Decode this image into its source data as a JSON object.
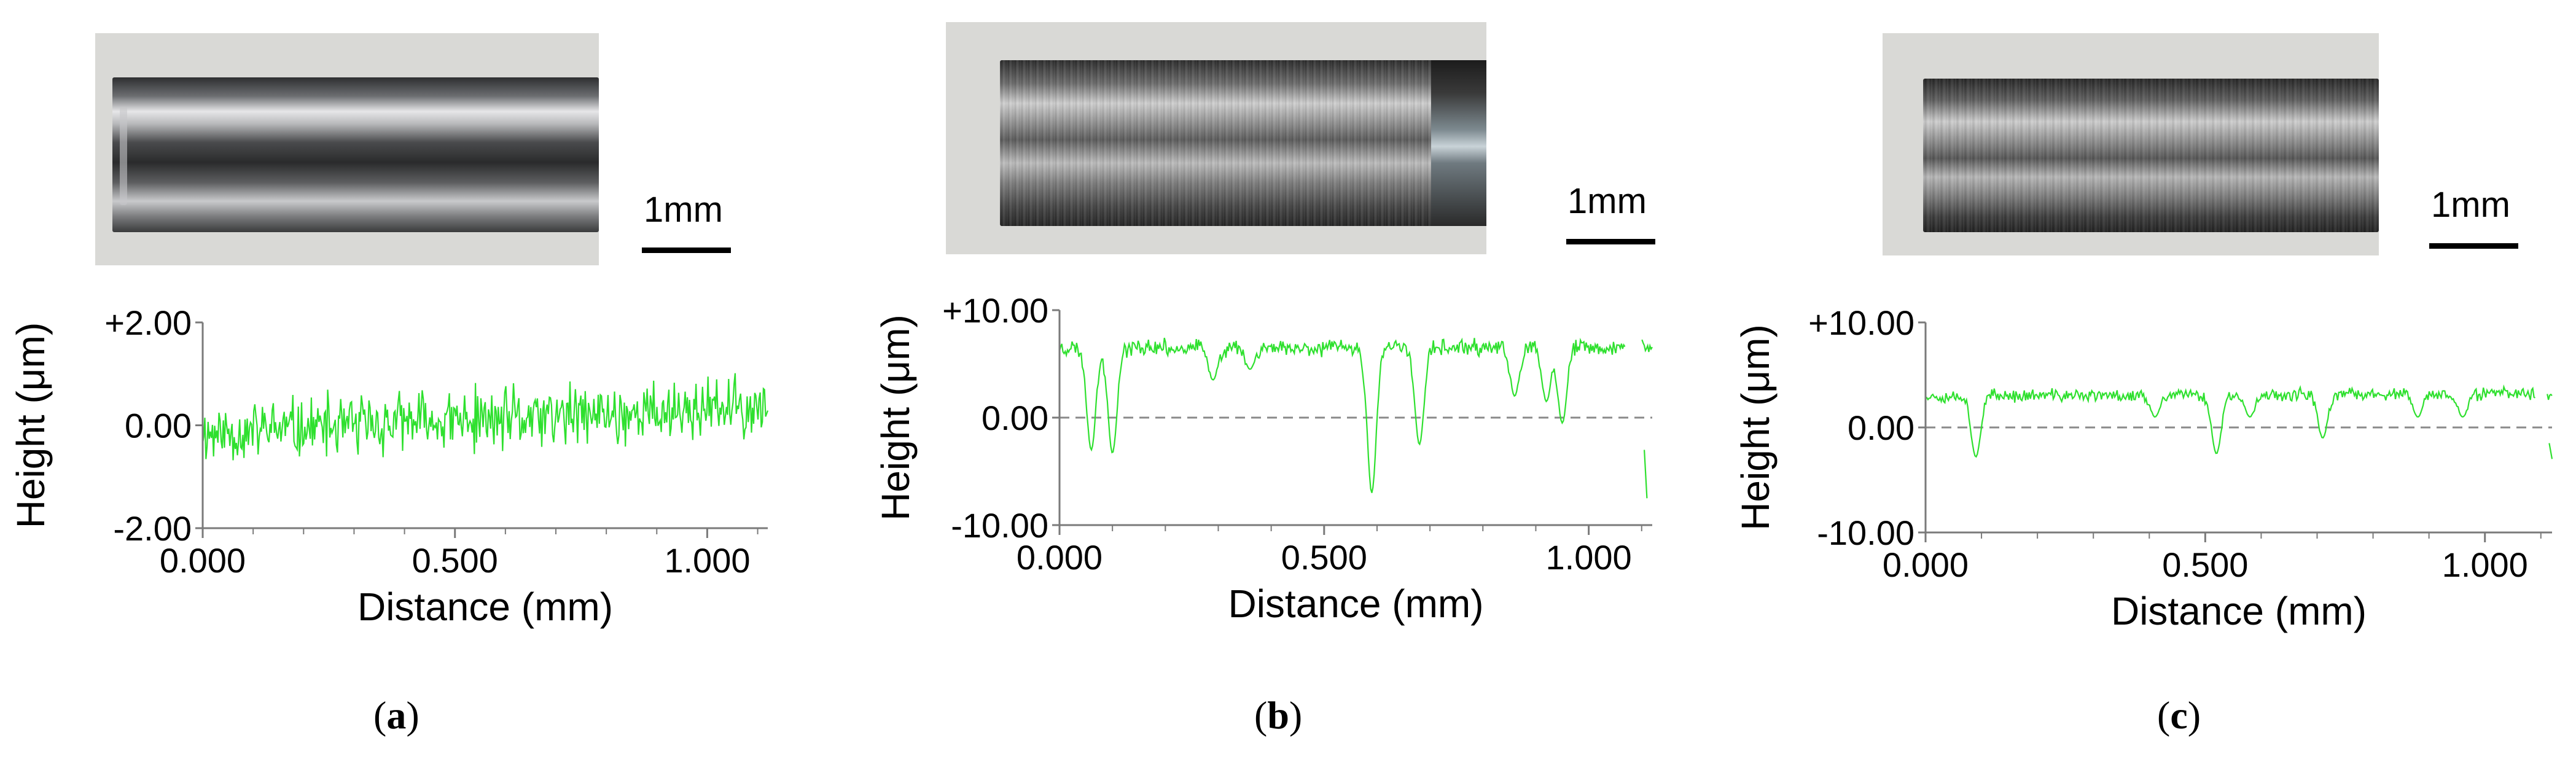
{
  "panels": [
    {
      "caption_open": "(",
      "caption_letter": "a",
      "caption_close": ")",
      "scale_label": "1mm",
      "photo": {
        "surface": "smooth-polished",
        "rod_color": "#5b5d60",
        "highlight_color": "#e8e8ea"
      },
      "chart_data": {
        "type": "line",
        "series_color": "#2ee02e",
        "xlabel": "Distance (mm)",
        "ylabel": "Height (μm)",
        "xlim": [
          0,
          1.12
        ],
        "ylim": [
          -2.0,
          2.0
        ],
        "xticks": [
          0.0,
          0.5,
          1.0
        ],
        "xtick_labels": [
          "0.000",
          "0.500",
          "1.000"
        ],
        "yticks": [
          2.0,
          0.0,
          -2.0
        ],
        "ytick_labels": [
          "+2.00",
          "0.00",
          "-2.00"
        ],
        "zero_line": false,
        "profile": {
          "baseline_start": -0.15,
          "baseline_end": 0.35,
          "noise": 0.55,
          "dips": [],
          "gaps": [],
          "seed": 11
        }
      }
    },
    {
      "caption_open": "(",
      "caption_letter": "b",
      "caption_close": ")",
      "scale_label": "1mm",
      "photo": {
        "surface": "worn",
        "rod_color": "#3c3c3c",
        "highlight_color": "#d0d0d0"
      },
      "chart_data": {
        "type": "line",
        "series_color": "#2ee02e",
        "xlabel": "Distance (mm)",
        "ylabel": "Height (μm)",
        "xlim": [
          0,
          1.12
        ],
        "ylim": [
          -10.0,
          10.0
        ],
        "xticks": [
          0.0,
          0.5,
          1.0
        ],
        "xtick_labels": [
          "0.000",
          "0.500",
          "1.000"
        ],
        "yticks": [
          10.0,
          0.0,
          -10.0
        ],
        "ytick_labels": [
          "+10.00",
          "0.00",
          "-10.00"
        ],
        "zero_line": true,
        "profile": {
          "baseline_start": 6.5,
          "baseline_end": 6.5,
          "noise": 0.7,
          "dips": [
            [
              0.06,
              -3.0
            ],
            [
              0.1,
              -3.3
            ],
            [
              0.29,
              3.5
            ],
            [
              0.36,
              4.5
            ],
            [
              0.59,
              -7.0
            ],
            [
              0.68,
              -2.5
            ],
            [
              0.86,
              2.0
            ],
            [
              0.92,
              1.5
            ],
            [
              0.95,
              -0.5
            ]
          ],
          "gaps": [
            [
              1.07,
              1.1
            ]
          ],
          "seed": 23
        }
      }
    },
    {
      "caption_open": "(",
      "caption_letter": "c",
      "caption_close": ")",
      "scale_label": "1mm",
      "photo": {
        "surface": "worn",
        "rod_color": "#3e3e3e",
        "highlight_color": "#d6d6d6"
      },
      "chart_data": {
        "type": "line",
        "series_color": "#2ee02e",
        "xlabel": "Distance (mm)",
        "ylabel": "Height (μm)",
        "xlim": [
          0,
          1.12
        ],
        "ylim": [
          -10.0,
          10.0
        ],
        "xticks": [
          0.0,
          0.5,
          1.0
        ],
        "xtick_labels": [
          "0.000",
          "0.500",
          "1.000"
        ],
        "yticks": [
          10.0,
          0.0,
          -10.0
        ],
        "ytick_labels": [
          "+10.00",
          "0.00",
          "-10.00"
        ],
        "zero_line": true,
        "profile": {
          "baseline_start": 3.0,
          "baseline_end": 3.2,
          "noise": 0.55,
          "dips": [
            [
              0.09,
              -2.8
            ],
            [
              0.41,
              1.0
            ],
            [
              0.52,
              -2.5
            ],
            [
              0.58,
              1.0
            ],
            [
              0.71,
              -1.0
            ],
            [
              0.88,
              1.0
            ],
            [
              0.96,
              1.0
            ]
          ],
          "gaps": [
            [
              1.09,
              1.11
            ]
          ],
          "seed": 37
        }
      }
    }
  ]
}
